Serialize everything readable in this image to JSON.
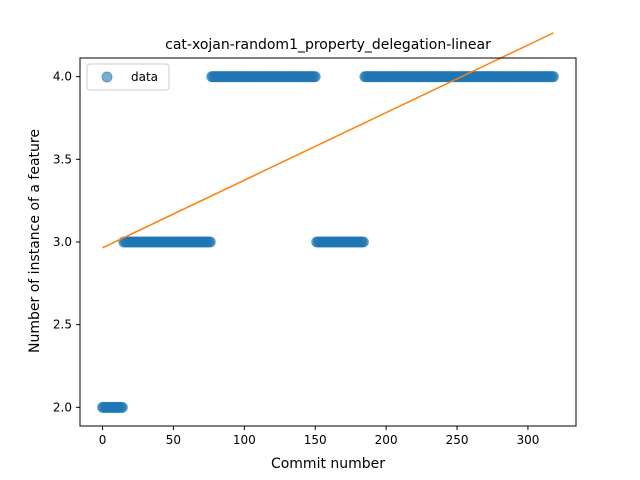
{
  "chart_data": {
    "type": "scatter",
    "title": "cat-xojan-random1_property_delegation-linear",
    "xlabel": "Commit number",
    "ylabel": "Number of instance of a feature",
    "xlim": [
      -15.9,
      333.9
    ],
    "ylim": [
      1.887,
      4.113
    ],
    "xticks": [
      0,
      50,
      100,
      150,
      200,
      250,
      300
    ],
    "yticks": [
      2.0,
      2.5,
      3.0,
      3.5,
      4.0
    ],
    "ytick_labels": [
      "2.0",
      "2.5",
      "3.0",
      "3.5",
      "4.0"
    ],
    "grid": false,
    "legend": {
      "position": "upper-left",
      "entries": [
        "data"
      ]
    },
    "series": [
      {
        "name": "data",
        "kind": "points",
        "color": "#1f77b4",
        "segments": [
          {
            "x_start": 0,
            "x_end": 14,
            "y": 2
          },
          {
            "x_start": 15,
            "x_end": 76,
            "y": 3
          },
          {
            "x_start": 77,
            "x_end": 150,
            "y": 4
          },
          {
            "x_start": 151,
            "x_end": 184,
            "y": 3
          },
          {
            "x_start": 185,
            "x_end": 318,
            "y": 4
          }
        ]
      },
      {
        "name": "",
        "kind": "fit-line",
        "color": "#ff7f0e",
        "x": [
          0,
          318
        ],
        "y": [
          2.965,
          4.265
        ]
      }
    ]
  }
}
